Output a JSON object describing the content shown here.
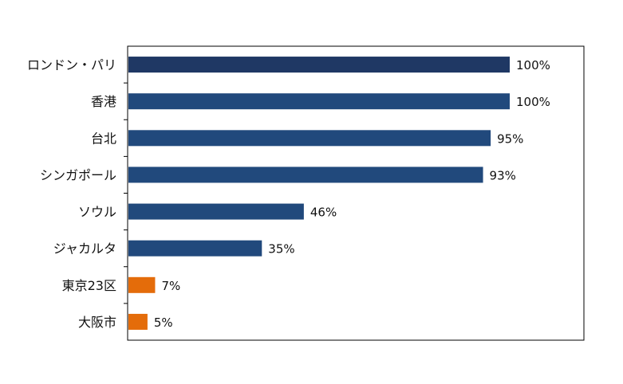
{
  "chart_data": {
    "type": "bar",
    "orientation": "horizontal",
    "title": "",
    "xlabel": "",
    "ylabel": "",
    "categories": [
      "ロンドン・パリ",
      "香港",
      "台北",
      "シンガポール",
      "ソウル",
      "ジャカルタ",
      "東京23区",
      "大阪市"
    ],
    "values": [
      100,
      100,
      95,
      93,
      46,
      35,
      7,
      5
    ],
    "value_labels": [
      "100%",
      "100%",
      "95%",
      "93%",
      "46%",
      "35%",
      "7%",
      "5%"
    ],
    "xlim": [
      0,
      130
    ],
    "grid": false,
    "legend": "none",
    "colors": [
      "#1f3864",
      "#21497c",
      "#21497c",
      "#21497c",
      "#21497c",
      "#21497c",
      "#e46c0a",
      "#e46c0a"
    ]
  }
}
